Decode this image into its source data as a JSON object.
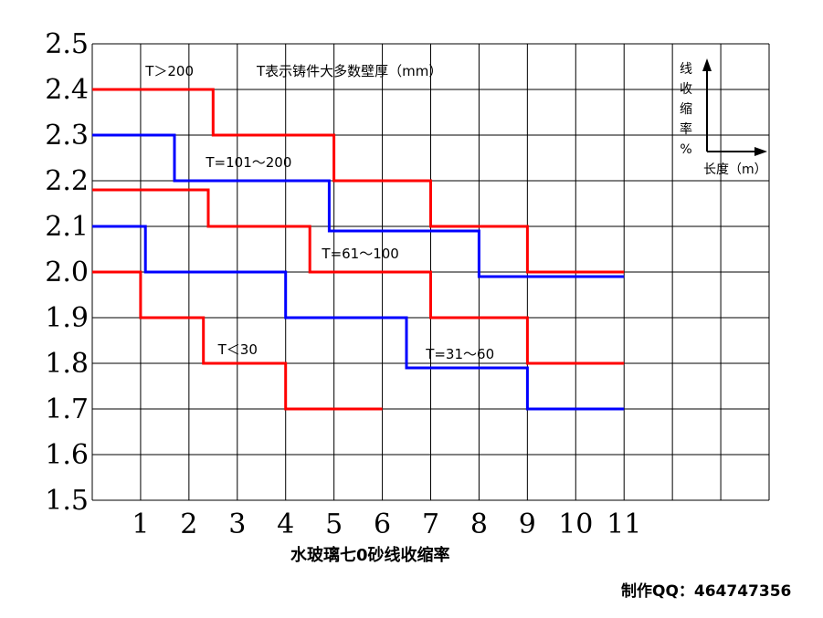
{
  "chart_data": {
    "type": "line",
    "step": true,
    "title": "",
    "xlabel": "水玻璃七0砂线收缩率",
    "ylabel": "",
    "xlim": [
      0,
      14
    ],
    "ylim": [
      1.5,
      2.5
    ],
    "grid": true,
    "x_ticks": [
      "1",
      "2",
      "3",
      "4",
      "5",
      "6",
      "7",
      "8",
      "9",
      "10",
      "11"
    ],
    "y_ticks": [
      "1.5",
      "1.6",
      "1.7",
      "1.8",
      "1.9",
      "2.0",
      "2.1",
      "2.2",
      "2.3",
      "2.4",
      "2.5"
    ],
    "series": [
      {
        "name": "T＞200",
        "color": "#ff0000",
        "points": [
          [
            0,
            2.4
          ],
          [
            2.5,
            2.4
          ],
          [
            2.5,
            2.3
          ],
          [
            5,
            2.3
          ],
          [
            5,
            2.2
          ],
          [
            7,
            2.2
          ],
          [
            7,
            2.1
          ],
          [
            9,
            2.1
          ],
          [
            9,
            2.0
          ],
          [
            11,
            2.0
          ]
        ]
      },
      {
        "name": "T=101～200",
        "color": "#0000ff",
        "points": [
          [
            0,
            2.3
          ],
          [
            1.7,
            2.3
          ],
          [
            1.7,
            2.2
          ],
          [
            4.9,
            2.2
          ],
          [
            4.9,
            2.09
          ],
          [
            8,
            2.09
          ],
          [
            8,
            1.99
          ],
          [
            11,
            1.99
          ]
        ]
      },
      {
        "name": "T=61～100",
        "color": "#ff0000",
        "points": [
          [
            0,
            2.18
          ],
          [
            2.4,
            2.18
          ],
          [
            2.4,
            2.1
          ],
          [
            4.5,
            2.1
          ],
          [
            4.5,
            2.0
          ],
          [
            7,
            2.0
          ],
          [
            7,
            1.9
          ],
          [
            9,
            1.9
          ],
          [
            9,
            1.8
          ],
          [
            11,
            1.8
          ]
        ]
      },
      {
        "name": "T=31～60",
        "color": "#0000ff",
        "points": [
          [
            0,
            2.1
          ],
          [
            1.1,
            2.1
          ],
          [
            1.1,
            2.0
          ],
          [
            4,
            2.0
          ],
          [
            4,
            1.9
          ],
          [
            6.5,
            1.9
          ],
          [
            6.5,
            1.79
          ],
          [
            9,
            1.79
          ],
          [
            9,
            1.7
          ],
          [
            11,
            1.7
          ]
        ]
      },
      {
        "name": "T＜30",
        "color": "#ff0000",
        "points": [
          [
            0,
            2.0
          ],
          [
            1,
            2.0
          ],
          [
            1,
            1.9
          ],
          [
            2.3,
            1.9
          ],
          [
            2.3,
            1.8
          ],
          [
            4,
            1.8
          ],
          [
            4,
            1.7
          ],
          [
            6,
            1.7
          ]
        ]
      }
    ],
    "annotations": [
      {
        "text": "T＞200",
        "x": 1.1,
        "y": 2.43
      },
      {
        "text": "T表示铸件大多数壁厚（mm）",
        "x": 3.4,
        "y": 2.43
      },
      {
        "text": "T=101～200",
        "x": 2.35,
        "y": 2.23
      },
      {
        "text": "T=61～100",
        "x": 4.75,
        "y": 2.03
      },
      {
        "text": "T＜30",
        "x": 2.6,
        "y": 1.82
      },
      {
        "text": "T=31～60",
        "x": 6.9,
        "y": 1.81
      }
    ],
    "inset": {
      "ylabel_chars": [
        "线",
        "收",
        "缩",
        "率",
        "%"
      ],
      "xlabel": "长度（m）"
    }
  },
  "credit": "制作QQ：464747356"
}
